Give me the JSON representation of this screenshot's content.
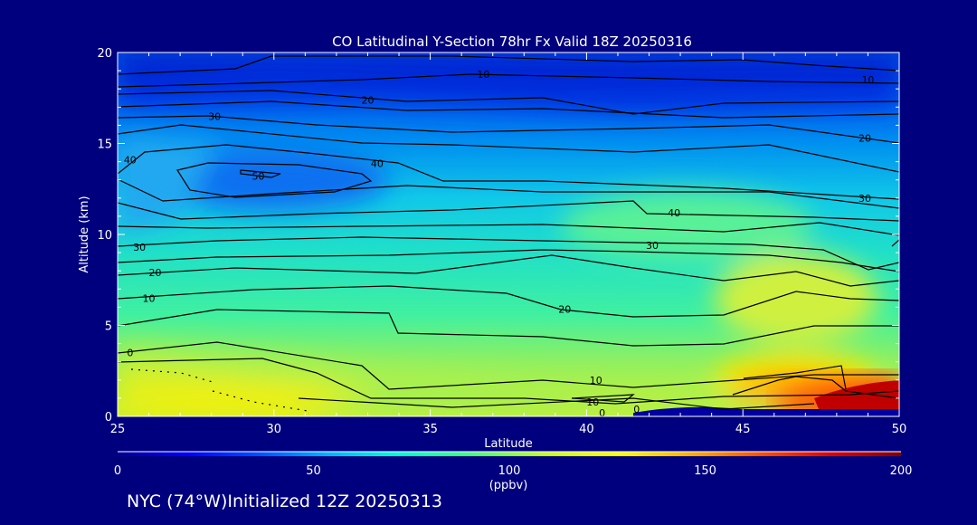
{
  "chart_data": {
    "type": "heatmap",
    "title": "CO Latitudinal Y-Section 78hr  Fx Valid 18Z 20250316",
    "xlabel": "Latitude",
    "ylabel": "Altitude (km)",
    "xlim": [
      25,
      50
    ],
    "ylim": [
      0,
      20
    ],
    "x_ticks": [
      "25",
      "30",
      "35",
      "40",
      "45",
      "50"
    ],
    "y_ticks": [
      "0",
      "5",
      "10",
      "15",
      "20"
    ],
    "colorbar": {
      "label": "(ppbv)",
      "range": [
        0,
        200
      ],
      "ticks": [
        "0",
        "50",
        "100",
        "150",
        "200"
      ],
      "colors": [
        "#000090",
        "#0000ff",
        "#0050ff",
        "#00b4ff",
        "#00ffd0",
        "#40ff80",
        "#c8ff20",
        "#ffff00",
        "#ffb000",
        "#ff5000",
        "#e00000",
        "#800000"
      ]
    },
    "contour_labels": [
      {
        "text": "10",
        "lat": 36.7,
        "alt": 18.8
      },
      {
        "text": "10",
        "lat": 49.0,
        "alt": 18.5
      },
      {
        "text": "20",
        "lat": 33.0,
        "alt": 17.4
      },
      {
        "text": "20",
        "lat": 48.9,
        "alt": 15.3
      },
      {
        "text": "30",
        "lat": 28.1,
        "alt": 16.5
      },
      {
        "text": "30",
        "lat": 48.9,
        "alt": 12.0
      },
      {
        "text": "40",
        "lat": 25.4,
        "alt": 14.1
      },
      {
        "text": "40",
        "lat": 33.3,
        "alt": 13.9
      },
      {
        "text": "40",
        "lat": 42.8,
        "alt": 11.2
      },
      {
        "text": "50",
        "lat": 29.5,
        "alt": 13.2
      },
      {
        "text": "30",
        "lat": 25.7,
        "alt": 9.3
      },
      {
        "text": "30",
        "lat": 42.1,
        "alt": 9.4
      },
      {
        "text": "20",
        "lat": 26.2,
        "alt": 7.9
      },
      {
        "text": "20",
        "lat": 39.3,
        "alt": 5.9
      },
      {
        "text": "10",
        "lat": 26.0,
        "alt": 6.5
      },
      {
        "text": "10",
        "lat": 40.3,
        "alt": 2.0
      },
      {
        "text": "10",
        "lat": 40.2,
        "alt": 0.8
      },
      {
        "text": "0",
        "lat": 25.4,
        "alt": 3.5
      },
      {
        "text": "0",
        "lat": 40.5,
        "alt": 0.2
      },
      {
        "text": "0",
        "lat": 41.6,
        "alt": 0.4
      }
    ]
  },
  "footer": {
    "initialized": "NYC (74°W)Initialized 12Z 20250313"
  }
}
